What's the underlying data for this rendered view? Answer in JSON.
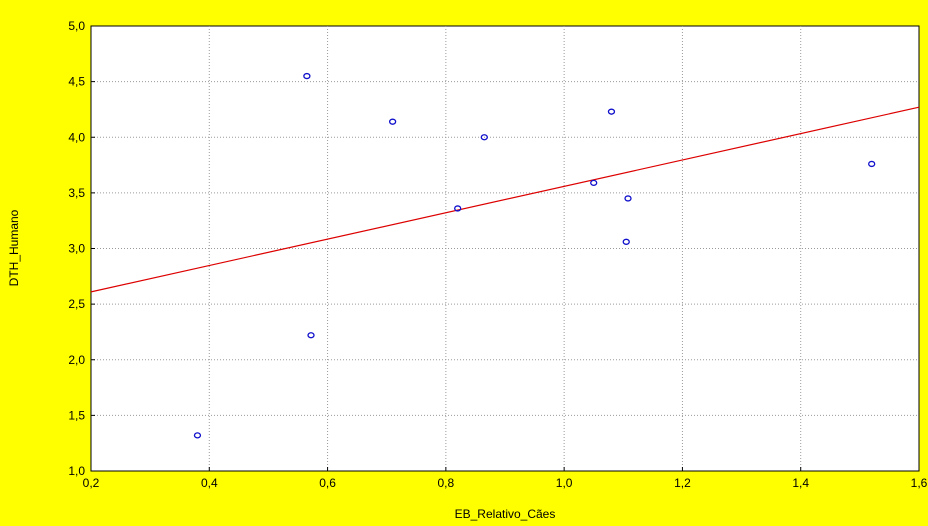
{
  "chart_data": {
    "type": "scatter",
    "xlabel": "EB_Relativo_Cães",
    "ylabel": "DTH_Humano",
    "xlim": [
      0.2,
      1.6
    ],
    "ylim": [
      1.0,
      5.0
    ],
    "x_ticks": [
      "0,2",
      "0,4",
      "0,6",
      "0,8",
      "1,0",
      "1,2",
      "1,4",
      "1,6"
    ],
    "y_ticks": [
      "1,0",
      "1,5",
      "2,0",
      "2,5",
      "3,0",
      "3,5",
      "4,0",
      "4,5",
      "5,0"
    ],
    "grid": true,
    "points": [
      {
        "x": 0.38,
        "y": 1.32
      },
      {
        "x": 0.565,
        "y": 4.55
      },
      {
        "x": 0.572,
        "y": 2.22
      },
      {
        "x": 0.71,
        "y": 4.14
      },
      {
        "x": 0.82,
        "y": 3.36
      },
      {
        "x": 0.865,
        "y": 4.0
      },
      {
        "x": 1.05,
        "y": 3.59
      },
      {
        "x": 1.08,
        "y": 4.23
      },
      {
        "x": 1.105,
        "y": 3.06
      },
      {
        "x": 1.108,
        "y": 3.45
      },
      {
        "x": 1.52,
        "y": 3.76
      }
    ],
    "fit_line": {
      "x": [
        0.2,
        1.6
      ],
      "y": [
        2.61,
        4.27
      ]
    },
    "colors": {
      "background": "#ffff00",
      "plot_background": "#ffffff",
      "grid": "#9a9a9a",
      "points": "#1010cc",
      "fit_line": "#dd0000"
    }
  }
}
